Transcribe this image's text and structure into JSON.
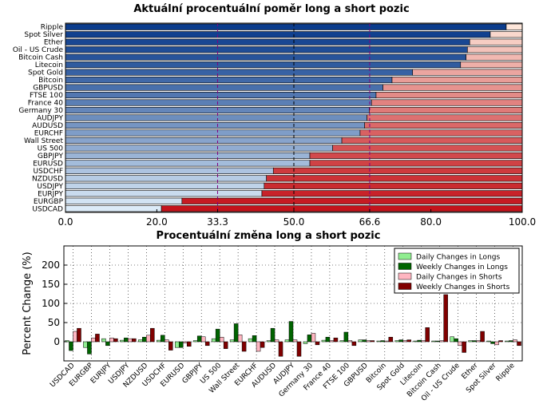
{
  "chart_data": [
    {
      "type": "bar",
      "orientation": "horizontal-stacked",
      "title": "Aktuální procentuální poměr long a short pozic",
      "categories": [
        "Ripple",
        "Spot Silver",
        "Ether",
        "Oil - US Crude",
        "Bitcoin Cash",
        "Litecoin",
        "Spot Gold",
        "Bitcoin",
        "GBPUSD",
        "FTSE 100",
        "France 40",
        "Germany 30",
        "AUDJPY",
        "AUDUSD",
        "EURCHF",
        "Wall Street",
        "US 500",
        "GBPJPY",
        "EURUSD",
        "USDCHF",
        "NZDUSD",
        "USDJPY",
        "EURJPY",
        "EURGBP",
        "USDCAD"
      ],
      "series": [
        {
          "values": [
            96.5,
            93.0,
            88.5,
            88.0,
            87.7,
            86.5,
            76.0,
            71.5,
            69.5,
            68.0,
            67.0,
            66.5,
            66.0,
            65.5,
            64.5,
            60.5,
            58.5,
            53.5,
            53.5,
            45.5,
            44.0,
            43.5,
            43.0,
            25.5,
            21.0
          ]
        },
        {
          "values": [
            3.5,
            7.0,
            11.5,
            12.0,
            12.3,
            13.5,
            24.0,
            28.5,
            30.5,
            32.0,
            33.0,
            33.5,
            34.0,
            34.5,
            35.5,
            39.5,
            41.5,
            46.5,
            46.5,
            54.5,
            56.0,
            56.5,
            57.0,
            74.5,
            79.0
          ]
        }
      ],
      "xlim": [
        0,
        100
      ],
      "xticks": [
        "0.0",
        "20.0",
        "33.3",
        "50.0",
        "66.6",
        "80.0",
        "100.0"
      ],
      "reference_lines": [
        33.3,
        50.0,
        66.6
      ],
      "colors": {
        "long": "#0b4da0",
        "short": "#c62025",
        "accent": "#800080"
      }
    },
    {
      "type": "bar",
      "title": "Procentuální změna long a short pozic",
      "ylabel": "Percent Change (%)",
      "ylim": [
        -50,
        250
      ],
      "yticks": [
        "0",
        "50",
        "100",
        "150",
        "200"
      ],
      "grid": true,
      "legend_position": "top-right",
      "categories": [
        "USDCAD",
        "EURGBP",
        "EURJPY",
        "USDJPY",
        "NZDUSD",
        "USDCHF",
        "EURUSD",
        "GBPJPY",
        "US 500",
        "Wall Street",
        "EURCHF",
        "AUDUSD",
        "AUDJPY",
        "Germany 30",
        "France 40",
        "FTSE 100",
        "GBPUSD",
        "Bitcoin",
        "Spot Gold",
        "Litecoin",
        "Bitcoin Cash",
        "Oil - US Crude",
        "Ether",
        "Spot Silver",
        "Ripple"
      ],
      "series": [
        {
          "name": "Daily Changes in Longs",
          "color": "#90ee90",
          "values": [
            3,
            -15,
            8,
            4,
            5,
            4,
            -15,
            3,
            8,
            5,
            8,
            3,
            5,
            -5,
            4,
            3,
            5,
            2,
            3,
            2,
            2,
            13,
            3,
            2,
            2
          ]
        },
        {
          "name": "Weekly Changes in Longs",
          "color": "#006400",
          "values": [
            -23,
            -32,
            -10,
            10,
            12,
            17,
            -15,
            15,
            33,
            47,
            16,
            35,
            53,
            18,
            12,
            25,
            5,
            3,
            5,
            4,
            2,
            8,
            3,
            -5,
            3
          ]
        },
        {
          "name": "Daily Changes in Shorts",
          "color": "#ffb6c1",
          "values": [
            27,
            10,
            10,
            8,
            17,
            5,
            -3,
            13,
            12,
            18,
            -25,
            5,
            5,
            22,
            3,
            3,
            3,
            2,
            3,
            3,
            3,
            -10,
            3,
            -8,
            5
          ]
        },
        {
          "name": "Weekly Changes in Shorts",
          "color": "#800000",
          "values": [
            35,
            20,
            8,
            8,
            35,
            -22,
            -12,
            -10,
            -18,
            -25,
            -15,
            -38,
            -38,
            -8,
            10,
            -10,
            3,
            12,
            5,
            37,
            123,
            -28,
            27,
            3,
            -10
          ]
        }
      ]
    }
  ]
}
